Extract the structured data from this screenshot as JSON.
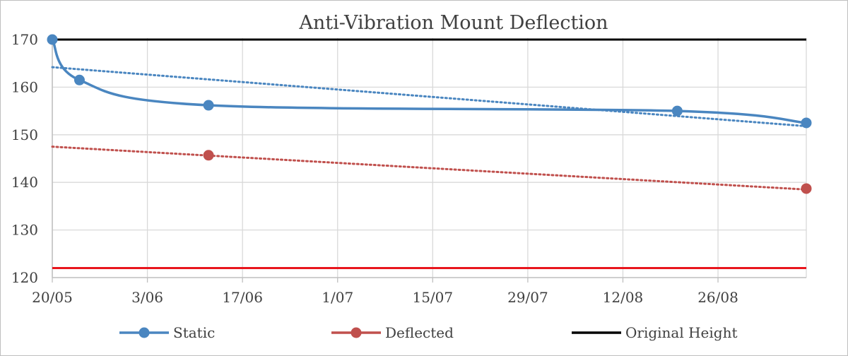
{
  "chart_data": {
    "type": "line",
    "title": "Anti-Vibration Mount Deflection",
    "xlabel": "",
    "ylabel": "",
    "x_type": "date",
    "xlim": [
      "2016-05-20",
      "2016-09-08"
    ],
    "x_ticks": [
      {
        "date": "2016-05-20",
        "label": "20/05"
      },
      {
        "date": "2016-06-03",
        "label": "3/06"
      },
      {
        "date": "2016-06-17",
        "label": "17/06"
      },
      {
        "date": "2016-07-01",
        "label": "1/07"
      },
      {
        "date": "2016-07-15",
        "label": "15/07"
      },
      {
        "date": "2016-07-29",
        "label": "29/07"
      },
      {
        "date": "2016-08-12",
        "label": "12/08"
      },
      {
        "date": "2016-08-26",
        "label": "26/08"
      }
    ],
    "ylim": [
      120,
      170
    ],
    "y_ticks": [
      120,
      130,
      140,
      150,
      160,
      170
    ],
    "grid": {
      "vertical": true,
      "horizontal": true
    },
    "legend": {
      "position": "bottom"
    },
    "series": [
      {
        "name": "Static",
        "color": "#4a86c0",
        "line": "smooth",
        "markers": true,
        "points": [
          {
            "x": "2016-05-20",
            "y": 170
          },
          {
            "x": "2016-05-24",
            "y": 161.5
          },
          {
            "x": "2016-06-12",
            "y": 156.2
          },
          {
            "x": "2016-08-20",
            "y": 155
          },
          {
            "x": "2016-09-08",
            "y": 152.5
          }
        ],
        "trendline": {
          "type": "linear",
          "color": "#4a86c0",
          "y_start": 164.2,
          "y_end": 151.8
        }
      },
      {
        "name": "Deflected",
        "color": "#c0504d",
        "line": "none",
        "markers": true,
        "points": [
          {
            "x": "2016-06-12",
            "y": 145.7
          },
          {
            "x": "2016-09-08",
            "y": 138.7
          }
        ],
        "trendline": {
          "type": "linear",
          "color": "#c0504d",
          "y_start": 147.5,
          "y_end": 138.5
        }
      },
      {
        "name": "Original Height",
        "color": "#000000",
        "line": "straight",
        "markers": false,
        "points": [
          {
            "x": "2016-05-20",
            "y": 170
          },
          {
            "x": "2016-09-08",
            "y": 170
          }
        ]
      },
      {
        "color": "#e8161d",
        "line": "straight",
        "markers": false,
        "show_in_legend": false,
        "points": [
          {
            "x": "2016-05-20",
            "y": 122
          },
          {
            "x": "2016-09-08",
            "y": 122
          }
        ]
      }
    ]
  }
}
